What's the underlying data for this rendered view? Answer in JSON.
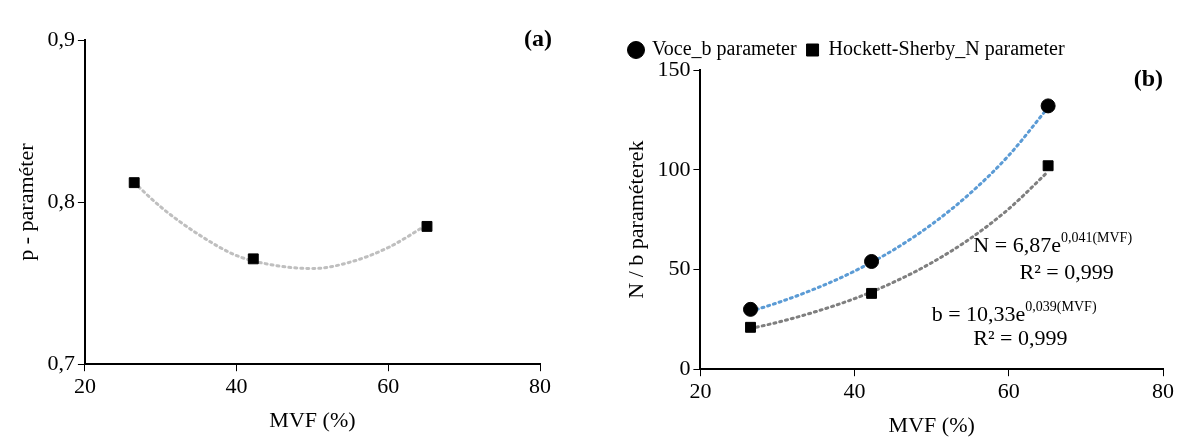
{
  "chart_data": [
    {
      "type": "scatter",
      "title": "(a)",
      "xlabel": "MVF (%)",
      "ylabel": "p - paraméter",
      "xlim": [
        20,
        80
      ],
      "xticks": [
        20,
        40,
        60,
        80
      ],
      "ylim": [
        0.7,
        0.9
      ],
      "yticks": [
        {
          "value": 0.7,
          "label": "0,7"
        },
        {
          "value": 0.8,
          "label": "0,8"
        },
        {
          "value": 0.9,
          "label": "0,9"
        }
      ],
      "grid": false,
      "legend": false,
      "series": [
        {
          "type": "line",
          "color": "#bfbfbf",
          "marker": "none",
          "line_style": "dotted",
          "x": [
            26.5,
            30,
            35,
            40,
            45,
            50,
            55,
            60,
            65.1
          ],
          "values": [
            0.812,
            0.797,
            0.78,
            0.767,
            0.761,
            0.759,
            0.763,
            0.772,
            0.786
          ]
        },
        {
          "type": "scatter",
          "color": "#000000",
          "marker": "square",
          "x": [
            26.5,
            42.2,
            65.1
          ],
          "values": [
            0.812,
            0.765,
            0.785
          ]
        }
      ]
    },
    {
      "type": "scatter",
      "title": "(b)",
      "xlabel": "MVF (%)",
      "ylabel": "N / b paraméterek",
      "xlim": [
        20,
        80
      ],
      "xticks": [
        20,
        40,
        60,
        80
      ],
      "ylim": [
        0,
        150
      ],
      "yticks": [
        0,
        50,
        100,
        150
      ],
      "grid": false,
      "legend": "top left",
      "annotations": [
        "N = 6,87e$^{0,041(MVF)}$",
        "R² = 0,999",
        "b = 10,33e$^{0,039(MVF)}$",
        "R² = 0,999"
      ],
      "series": [
        {
          "type": "line",
          "color": "#5b9bd5",
          "marker": "none",
          "line_style": "dotted",
          "x": [
            26.5,
            30,
            35,
            40,
            45,
            50,
            55,
            60,
            65.1
          ],
          "values": [
            29.0,
            33.3,
            40.5,
            49.2,
            59.7,
            72.6,
            88.2,
            107.2,
            131.2
          ]
        },
        {
          "type": "line",
          "color": "#7f7f7f",
          "marker": "none",
          "line_style": "dotted",
          "x": [
            26.5,
            30,
            35,
            40,
            45,
            50,
            55,
            60,
            65.1
          ],
          "values": [
            20.4,
            23.5,
            28.9,
            35.4,
            43.5,
            53.4,
            65.5,
            80.4,
            99.1
          ]
        },
        {
          "type": "scatter",
          "name": "Voce_b parameter",
          "color": "#000000",
          "marker": "circle",
          "x": [
            26.5,
            42.2,
            65.1
          ],
          "values": [
            30,
            54,
            132
          ]
        },
        {
          "type": "scatter",
          "name": "Hockett-Sherby_N parameter",
          "color": "#000000",
          "marker": "square",
          "x": [
            26.5,
            42.2,
            65.1
          ],
          "values": [
            21,
            38,
            102
          ]
        }
      ]
    }
  ]
}
